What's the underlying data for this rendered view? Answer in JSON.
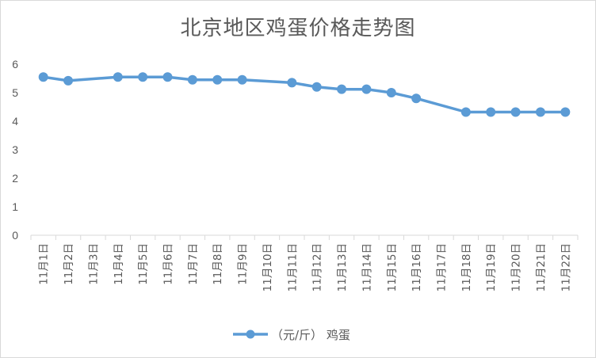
{
  "chart_data": {
    "type": "line",
    "title": "北京地区鸡蛋价格走势图",
    "categories": [
      "11月1日",
      "11月2日",
      "11月3日",
      "11月4日",
      "11月5日",
      "11月6日",
      "11月7日",
      "11月8日",
      "11月9日",
      "11月10日",
      "11月11日",
      "11月12日",
      "11月13日",
      "11月14日",
      "11月15日",
      "11月16日",
      "11月17日",
      "11月18日",
      "11月19日",
      "11月20日",
      "11月21日",
      "11月22日"
    ],
    "series": [
      {
        "name": "（元/斤） 鸡蛋",
        "color": "#5b9bd5",
        "values": [
          5.55,
          5.42,
          null,
          5.55,
          5.55,
          5.55,
          5.45,
          5.45,
          5.45,
          null,
          5.35,
          5.2,
          5.12,
          5.12,
          5.0,
          4.8,
          null,
          4.32,
          4.32,
          4.32,
          4.32,
          4.32
        ]
      }
    ],
    "yticks": [
      "0",
      "1",
      "2",
      "3",
      "4",
      "5",
      "6"
    ],
    "ylim": [
      0,
      6
    ],
    "xlabel": "",
    "ylabel": "",
    "grid": false,
    "legend": "bottom",
    "connect_gaps": true
  }
}
